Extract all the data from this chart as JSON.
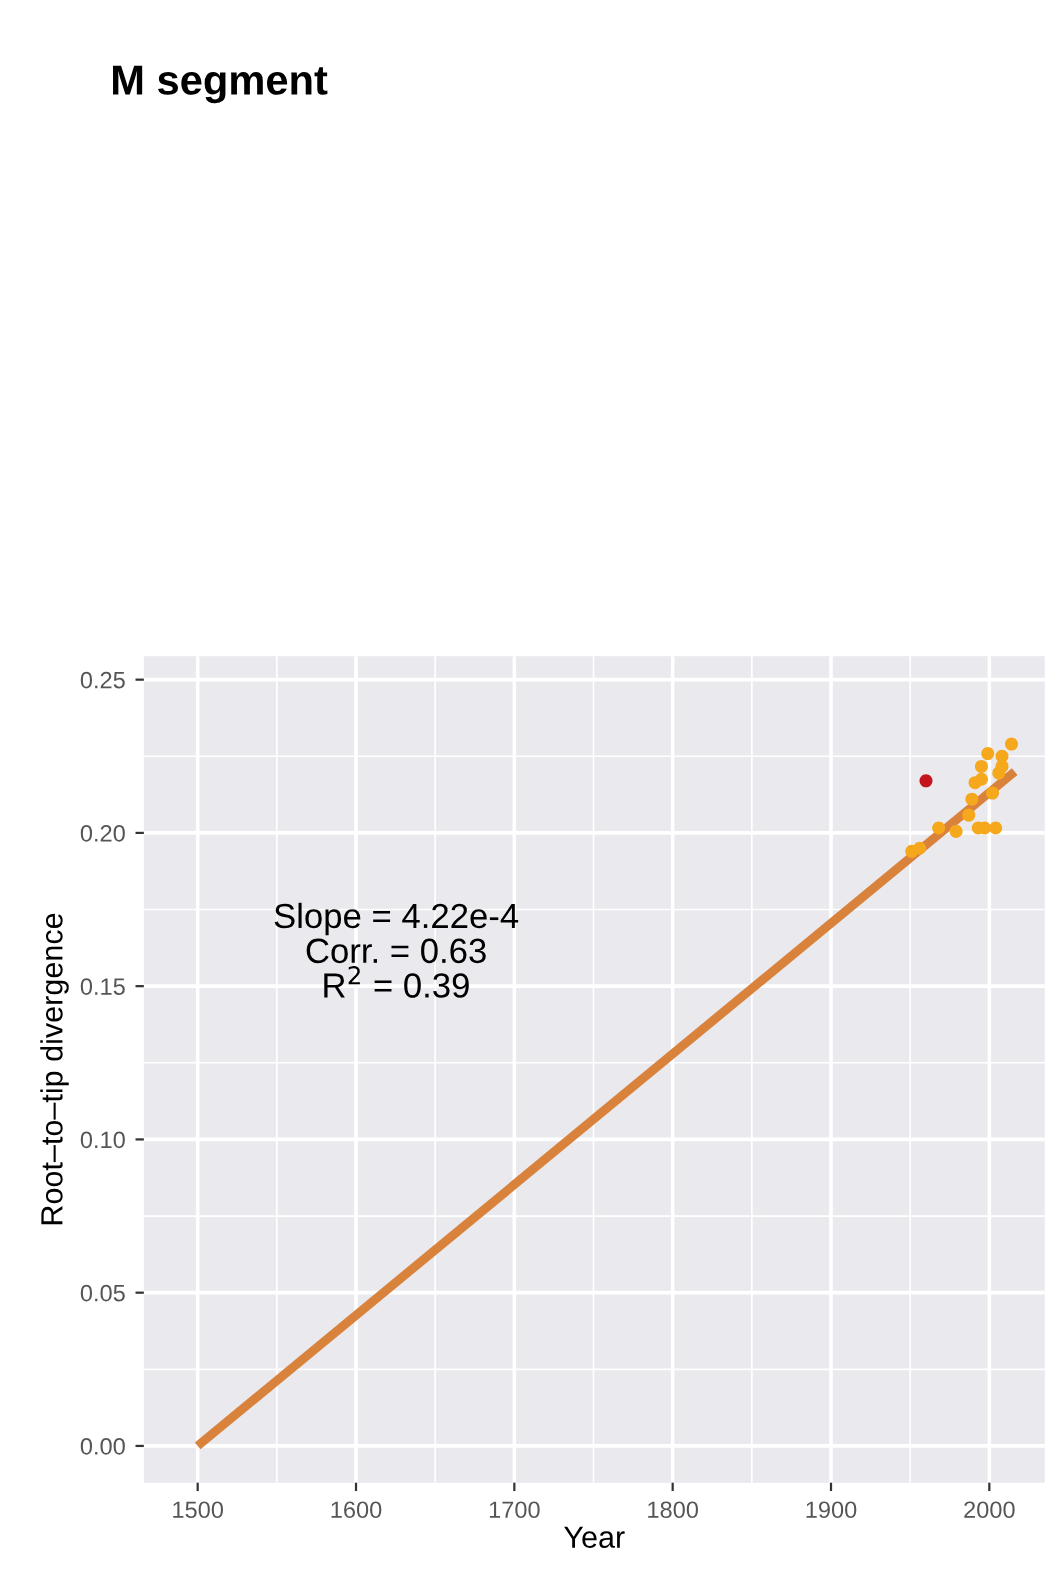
{
  "chart_data": {
    "type": "scatter",
    "title": "M segment",
    "xlabel": "Year",
    "ylabel": "Root–to–tip divergence",
    "annotations": [
      "Slope = 4.22e-4\nCorr. = 0.63\nR$^{2}$ = 0.39"
    ],
    "series": [
      {
        "type": "line",
        "color": "#d9823b",
        "x": [
          1500,
          2016
        ],
        "values": [
          0.0,
          0.22
        ]
      },
      {
        "marker": "circle",
        "color": "#f5a81c",
        "x": [
          1951,
          1956,
          1968,
          1979,
          1987,
          1989,
          1991,
          1993,
          1995,
          1995,
          1997,
          1999,
          2002,
          2004,
          2006,
          2008,
          2008,
          2014
        ],
        "values": [
          0.194,
          0.195,
          0.2016,
          0.2005,
          0.2058,
          0.211,
          0.2164,
          0.2016,
          0.2175,
          0.2217,
          0.2016,
          0.2259,
          0.213,
          0.2016,
          0.2195,
          0.225,
          0.2217,
          0.229
        ]
      },
      {
        "marker": "circle",
        "color": "#c4151c",
        "x": [
          1960
        ],
        "values": [
          0.217
        ]
      }
    ],
    "xlim": [
      1466,
      2035
    ],
    "ylim": [
      -0.012,
      0.2576
    ],
    "xticks": [
      1500,
      1600,
      1700,
      1800,
      1900,
      2000
    ],
    "yticks": [
      {
        "value": 0,
        "label": "0.00"
      },
      {
        "value": 0.05,
        "label": "0.05"
      },
      {
        "value": 0.1,
        "label": "0.10"
      },
      {
        "value": 0.15,
        "label": "0.15"
      },
      {
        "value": 0.2,
        "label": "0.20"
      },
      {
        "value": 0.25,
        "label": "0.25"
      }
    ],
    "grid": true
  }
}
